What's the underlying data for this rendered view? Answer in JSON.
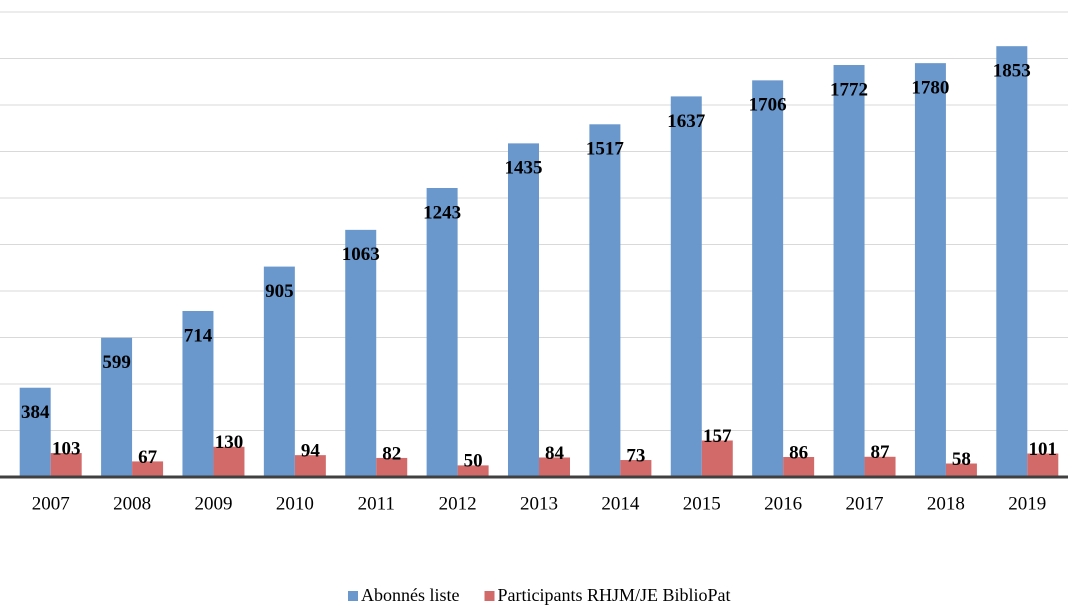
{
  "chart_data": {
    "type": "bar",
    "categories": [
      "2007",
      "2008",
      "2009",
      "2010",
      "2011",
      "2012",
      "2013",
      "2014",
      "2015",
      "2016",
      "2017",
      "2018",
      "2019"
    ],
    "series": [
      {
        "name": "Abonnés liste",
        "color": "#6a98cd",
        "values": [
          384,
          599,
          714,
          905,
          1063,
          1243,
          1435,
          1517,
          1637,
          1706,
          1772,
          1780,
          1853
        ]
      },
      {
        "name": "Participants RHJM/JE BiblioPat",
        "color": "#d26a6a",
        "values": [
          103,
          67,
          130,
          94,
          82,
          50,
          84,
          73,
          157,
          86,
          87,
          58,
          101
        ]
      }
    ],
    "ylim": [
      0,
      2000
    ],
    "yticks": [
      0,
      200,
      400,
      600,
      800,
      1000,
      1200,
      1400,
      1600,
      1800,
      2000
    ],
    "grid": true,
    "legend": "bottom"
  }
}
